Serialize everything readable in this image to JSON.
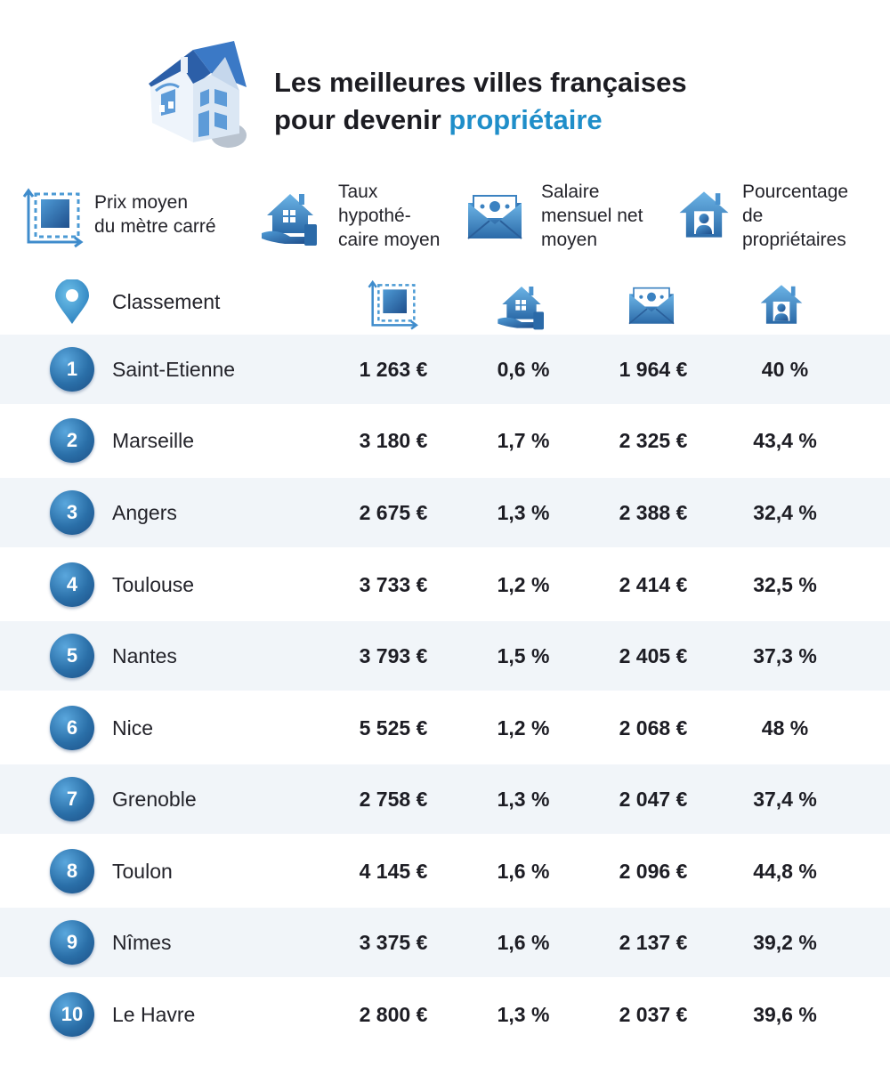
{
  "header": {
    "title_line1": "Les meilleures villes françaises",
    "title_line2_prefix": "pour devenir ",
    "title_line2_accent": "propriétaire",
    "accent_color": "#1f8ec9"
  },
  "legend": [
    {
      "icon": "square-area-icon",
      "label": "Prix moyen\ndu mètre carré"
    },
    {
      "icon": "house-hand-icon",
      "label": "Taux\nhypothé-\ncaire moyen"
    },
    {
      "icon": "money-envelope-icon",
      "label": "Salaire\nmensuel net\nmoyen"
    },
    {
      "icon": "house-person-icon",
      "label": "Pourcentage\nde\npropriétaires"
    }
  ],
  "table": {
    "rank_header": "Classement",
    "rows": [
      {
        "rank": "1",
        "city": "Saint-Etienne",
        "price": "1 263 €",
        "rate": "0,6 %",
        "salary": "1 964 €",
        "owners": "40 %"
      },
      {
        "rank": "2",
        "city": "Marseille",
        "price": "3 180 €",
        "rate": "1,7 %",
        "salary": "2 325 €",
        "owners": "43,4 %"
      },
      {
        "rank": "3",
        "city": "Angers",
        "price": "2 675 €",
        "rate": "1,3 %",
        "salary": "2 388 €",
        "owners": "32,4 %"
      },
      {
        "rank": "4",
        "city": "Toulouse",
        "price": "3 733 €",
        "rate": "1,2 %",
        "salary": "2 414 €",
        "owners": "32,5 %"
      },
      {
        "rank": "5",
        "city": "Nantes",
        "price": "3 793 €",
        "rate": "1,5 %",
        "salary": "2 405 €",
        "owners": "37,3 %"
      },
      {
        "rank": "6",
        "city": "Nice",
        "price": "5 525 €",
        "rate": "1,2 %",
        "salary": "2 068 €",
        "owners": "48 %"
      },
      {
        "rank": "7",
        "city": "Grenoble",
        "price": "2 758 €",
        "rate": "1,3 %",
        "salary": "2 047 €",
        "owners": "37,4 %"
      },
      {
        "rank": "8",
        "city": "Toulon",
        "price": "4 145 €",
        "rate": "1,6 %",
        "salary": "2 096 €",
        "owners": "44,8 %"
      },
      {
        "rank": "9",
        "city": "Nîmes",
        "price": "3 375 €",
        "rate": "1,6 %",
        "salary": "2 137 €",
        "owners": "39,2 %"
      },
      {
        "rank": "10",
        "city": "Le Havre",
        "price": "2 800 €",
        "rate": "1,3 %",
        "salary": "2 037 €",
        "owners": "39,6 %"
      }
    ]
  }
}
